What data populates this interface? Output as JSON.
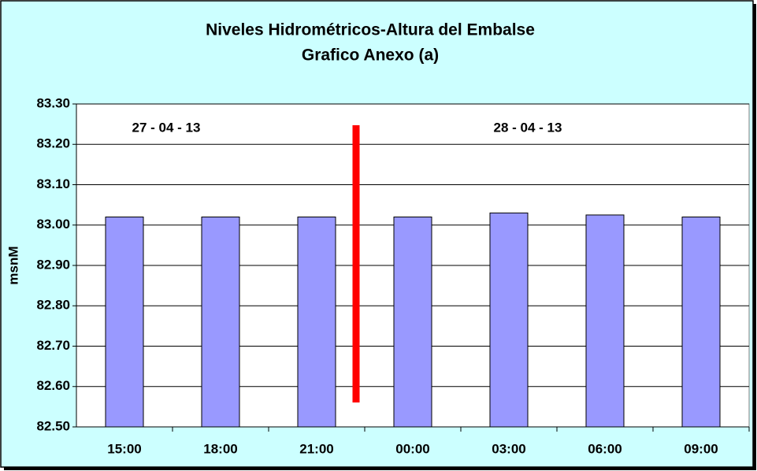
{
  "chart_data": {
    "type": "bar",
    "title": "Niveles Hidrométricos-Altura del Embalse",
    "subtitle": "Grafico Anexo (a)",
    "y_label": "msnM",
    "annotations": [
      "27 - 04 - 13",
      "28 - 04 - 13"
    ],
    "categories": [
      "15:00",
      "18:00",
      "21:00",
      "00:00",
      "03:00",
      "06:00",
      "09:00"
    ],
    "values": [
      83.02,
      83.02,
      83.02,
      83.02,
      83.03,
      83.025,
      83.02
    ],
    "color": "#9999ff",
    "ylim": [
      82.5,
      83.3
    ],
    "yticks": [
      {
        "value": 82.5,
        "label": "82.50"
      },
      {
        "value": 82.6,
        "label": "82.60"
      },
      {
        "value": 82.7,
        "label": "82.70"
      },
      {
        "value": 82.8,
        "label": "82.80"
      },
      {
        "value": 82.9,
        "label": "82.90"
      },
      {
        "value": 83.0,
        "label": "83.00"
      },
      {
        "value": 83.1,
        "label": "83.10"
      },
      {
        "value": 83.2,
        "label": "83.20"
      },
      {
        "value": 83.3,
        "label": "83.30"
      }
    ],
    "grid": true
  }
}
